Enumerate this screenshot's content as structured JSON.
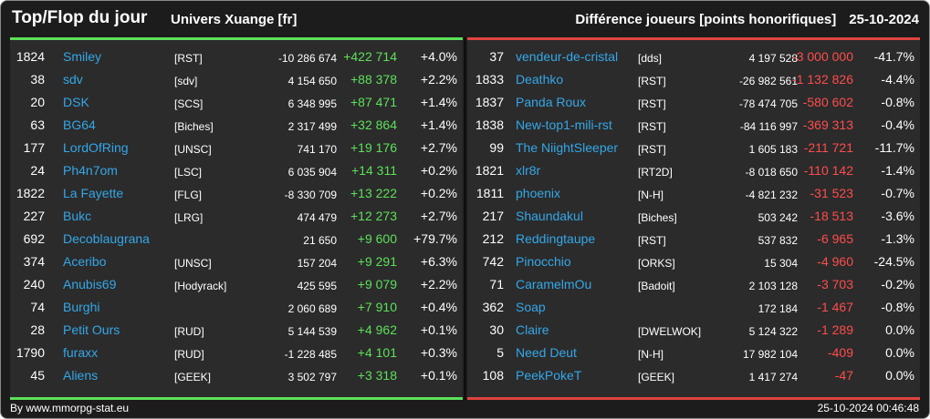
{
  "header": {
    "title": "Top/Flop du jour",
    "universe": "Univers Xuange [fr]",
    "metric": "Différence joueurs [points honorifiques]",
    "date": "25-10-2024"
  },
  "colors": {
    "top": "#5de05a",
    "flop": "#e0443f",
    "name": "#34a7e8",
    "background": "#1c1c1c"
  },
  "top": [
    {
      "rank": "1824",
      "name": "Smiley",
      "alliance": "[RST]",
      "total": "-10 286 674",
      "diff": "+422 714",
      "pct": "+4.0%"
    },
    {
      "rank": "38",
      "name": "sdv",
      "alliance": "[sdv]",
      "total": "4 154 650",
      "diff": "+88 378",
      "pct": "+2.2%"
    },
    {
      "rank": "20",
      "name": "DSK",
      "alliance": "[SCS]",
      "total": "6 348 995",
      "diff": "+87 471",
      "pct": "+1.4%"
    },
    {
      "rank": "63",
      "name": "BG64",
      "alliance": "[Biches]",
      "total": "2 317 499",
      "diff": "+32 864",
      "pct": "+1.4%"
    },
    {
      "rank": "177",
      "name": "LordOfRing",
      "alliance": "[UNSC]",
      "total": "741 170",
      "diff": "+19 176",
      "pct": "+2.7%"
    },
    {
      "rank": "24",
      "name": "Ph4n7om",
      "alliance": "[LSC]",
      "total": "6 035 904",
      "diff": "+14 311",
      "pct": "+0.2%"
    },
    {
      "rank": "1822",
      "name": "La Fayette",
      "alliance": "[FLG]",
      "total": "-8 330 709",
      "diff": "+13 222",
      "pct": "+0.2%"
    },
    {
      "rank": "227",
      "name": "Bukc",
      "alliance": "[LRG]",
      "total": "474 479",
      "diff": "+12 273",
      "pct": "+2.7%"
    },
    {
      "rank": "692",
      "name": "Decoblaugrana",
      "alliance": "",
      "total": "21 650",
      "diff": "+9 600",
      "pct": "+79.7%"
    },
    {
      "rank": "374",
      "name": "Aceribo",
      "alliance": "[UNSC]",
      "total": "157 204",
      "diff": "+9 291",
      "pct": "+6.3%"
    },
    {
      "rank": "240",
      "name": "Anubis69",
      "alliance": "[Hodyrack]",
      "total": "425 595",
      "diff": "+9 079",
      "pct": "+2.2%"
    },
    {
      "rank": "74",
      "name": "Burghi",
      "alliance": "",
      "total": "2 060 689",
      "diff": "+7 910",
      "pct": "+0.4%"
    },
    {
      "rank": "28",
      "name": "Petit Ours",
      "alliance": "[RUD]",
      "total": "5 144 539",
      "diff": "+4 962",
      "pct": "+0.1%"
    },
    {
      "rank": "1790",
      "name": "furaxx",
      "alliance": "[RUD]",
      "total": "-1 228 485",
      "diff": "+4 101",
      "pct": "+0.3%"
    },
    {
      "rank": "45",
      "name": "Aliens",
      "alliance": "[GEEK]",
      "total": "3 502 797",
      "diff": "+3 318",
      "pct": "+0.1%"
    }
  ],
  "flop": [
    {
      "rank": "37",
      "name": "vendeur-de-cristal",
      "alliance": "[dds]",
      "total": "4 197 528",
      "diff": "-3 000 000",
      "pct": "-41.7%"
    },
    {
      "rank": "1833",
      "name": "Deathko",
      "alliance": "[RST]",
      "total": "-26 982 561",
      "diff": "-1 132 826",
      "pct": "-4.4%"
    },
    {
      "rank": "1837",
      "name": "Panda Roux",
      "alliance": "[RST]",
      "total": "-78 474 705",
      "diff": "-580 602",
      "pct": "-0.8%"
    },
    {
      "rank": "1838",
      "name": "New-top1-mili-rst",
      "alliance": "[RST]",
      "total": "-84 116 997",
      "diff": "-369 313",
      "pct": "-0.4%"
    },
    {
      "rank": "99",
      "name": "The NiightSleeper",
      "alliance": "[RST]",
      "total": "1 605 183",
      "diff": "-211 721",
      "pct": "-11.7%"
    },
    {
      "rank": "1821",
      "name": "xlr8r",
      "alliance": "[RT2D]",
      "total": "-8 018 650",
      "diff": "-110 142",
      "pct": "-1.4%"
    },
    {
      "rank": "1811",
      "name": "phoenix",
      "alliance": "[N-H]",
      "total": "-4 821 232",
      "diff": "-31 523",
      "pct": "-0.7%"
    },
    {
      "rank": "217",
      "name": "Shaundakul",
      "alliance": "[Biches]",
      "total": "503 242",
      "diff": "-18 513",
      "pct": "-3.6%"
    },
    {
      "rank": "212",
      "name": "Reddingtaupe",
      "alliance": "[RST]",
      "total": "537 832",
      "diff": "-6 965",
      "pct": "-1.3%"
    },
    {
      "rank": "742",
      "name": "Pinocchio",
      "alliance": "[ORKS]",
      "total": "15 304",
      "diff": "-4 960",
      "pct": "-24.5%"
    },
    {
      "rank": "71",
      "name": "CaramelmOu",
      "alliance": "[Badoit]",
      "total": "2 103 128",
      "diff": "-3 703",
      "pct": "-0.2%"
    },
    {
      "rank": "362",
      "name": "Soap",
      "alliance": "",
      "total": "172 184",
      "diff": "-1 467",
      "pct": "-0.8%"
    },
    {
      "rank": "30",
      "name": "Claire",
      "alliance": "[DWELWOK]",
      "total": "5 124 322",
      "diff": "-1 289",
      "pct": "0.0%"
    },
    {
      "rank": "5",
      "name": "Need Deut",
      "alliance": "[N-H]",
      "total": "17 982 104",
      "diff": "-409",
      "pct": "0.0%"
    },
    {
      "rank": "108",
      "name": "PeekPokeT",
      "alliance": "[GEEK]",
      "total": "1 417 274",
      "diff": "-47",
      "pct": "0.0%"
    }
  ],
  "footer": {
    "credit": "By www.mmorpg-stat.eu",
    "timestamp": "25-10-2024 00:46:48"
  }
}
